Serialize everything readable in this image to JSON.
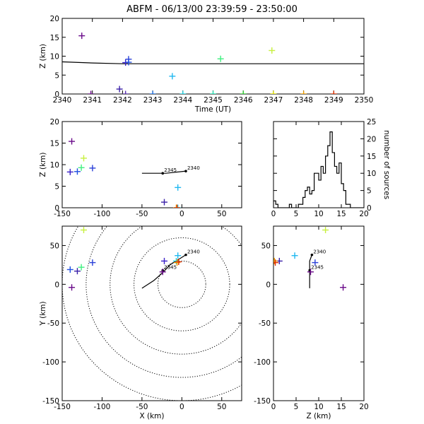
{
  "title": "ABFM - 06/13/00 23:39:59 - 23:50:00",
  "chart_data": [
    {
      "id": "time_height",
      "type": "scatter",
      "xlabel": "Time (UT)",
      "ylabel": "Z (km)",
      "xlim": [
        2340,
        2350
      ],
      "ylim": [
        0,
        20
      ],
      "xticks": [
        "2340",
        "2341",
        "2342",
        "2343",
        "2344",
        "2345",
        "2346",
        "2347",
        "2348",
        "2349",
        "2350"
      ],
      "yticks": [
        "0",
        "5",
        "10",
        "15",
        "20"
      ],
      "line": {
        "x": [
          2340,
          2341,
          2342,
          2350
        ],
        "y": [
          8.5,
          8.2,
          8.0,
          8.0
        ]
      },
      "points": [
        {
          "x": 2340.65,
          "y": 15.4,
          "color": "#6a0a8a"
        },
        {
          "x": 2340.95,
          "y": 0.0,
          "color": "#6a0a8a"
        },
        {
          "x": 2341.9,
          "y": 1.3,
          "color": "#3a20a8"
        },
        {
          "x": 2342.1,
          "y": 8.3,
          "color": "#3a20c8"
        },
        {
          "x": 2342.2,
          "y": 9.2,
          "color": "#2a40d8"
        },
        {
          "x": 2342.1,
          "y": 0.0,
          "color": "#5a30b0"
        },
        {
          "x": 2342.2,
          "y": 8.4,
          "color": "#2050e0"
        },
        {
          "x": 2343.0,
          "y": 0.0,
          "color": "#2070e0"
        },
        {
          "x": 2343.65,
          "y": 4.7,
          "color": "#20b8f0"
        },
        {
          "x": 2344.0,
          "y": 0.0,
          "color": "#20d0e0"
        },
        {
          "x": 2345.0,
          "y": 0.0,
          "color": "#20e0b0"
        },
        {
          "x": 2345.25,
          "y": 9.3,
          "color": "#40f080"
        },
        {
          "x": 2346.0,
          "y": 0.0,
          "color": "#30d030"
        },
        {
          "x": 2346.95,
          "y": 11.5,
          "color": "#c8f040"
        },
        {
          "x": 2347.0,
          "y": 0.0,
          "color": "#e0e000"
        },
        {
          "x": 2348.0,
          "y": 0.0,
          "color": "#f0a000"
        },
        {
          "x": 2349.0,
          "y": 0.0,
          "color": "#e03000"
        }
      ]
    },
    {
      "id": "xz",
      "type": "scatter",
      "xlabel": "",
      "ylabel": "Z (km)",
      "xlim": [
        -150,
        75
      ],
      "ylim": [
        0,
        20
      ],
      "xticks": [
        "-150",
        "-100",
        "-50",
        "0",
        "50"
      ],
      "yticks": [
        "0",
        "5",
        "10",
        "15",
        "20"
      ],
      "track": {
        "x": [
          -50,
          -24,
          -20,
          5
        ],
        "y": [
          8.0,
          8.0,
          8.0,
          8.5
        ]
      },
      "track_labels": [
        {
          "x": 5,
          "y": 8.5,
          "text": "2340"
        },
        {
          "x": -24,
          "y": 8.0,
          "text": "2345"
        }
      ],
      "points": [
        {
          "x": -138,
          "y": 15.4,
          "color": "#6a0a8a"
        },
        {
          "x": -123,
          "y": 11.5,
          "color": "#c8f040"
        },
        {
          "x": -126,
          "y": 9.3,
          "color": "#40f080"
        },
        {
          "x": -112,
          "y": 9.2,
          "color": "#2a40d8"
        },
        {
          "x": -140,
          "y": 8.3,
          "color": "#3a20c8"
        },
        {
          "x": -131,
          "y": 8.4,
          "color": "#2050e0"
        },
        {
          "x": -22,
          "y": 1.3,
          "color": "#3a20a8"
        },
        {
          "x": -5,
          "y": 4.7,
          "color": "#20b8f0"
        },
        {
          "x": -5,
          "y": 0.0,
          "color": "#20d0e0"
        },
        {
          "x": -7,
          "y": 0.0,
          "color": "#f0a000"
        },
        {
          "x": -6,
          "y": 0.0,
          "color": "#e03000"
        }
      ]
    },
    {
      "id": "histogram",
      "type": "bar",
      "xlabel": "",
      "ylabel": "number of sources",
      "xlim": [
        0,
        20
      ],
      "ylim": [
        0,
        25
      ],
      "xticks": [
        "0",
        "5",
        "10",
        "15",
        "20"
      ],
      "yticks": [
        "0",
        "5",
        "10",
        "15",
        "20",
        "25"
      ],
      "bin_width": 0.5,
      "bin_starts": [
        0,
        0.5,
        1,
        1.5,
        2,
        2.5,
        3,
        3.5,
        4,
        4.5,
        5,
        5.5,
        6,
        6.5,
        7,
        7.5,
        8,
        8.5,
        9,
        9.5,
        10,
        10.5,
        11,
        11.5,
        12,
        12.5,
        13,
        13.5,
        14,
        14.5,
        15,
        15.5,
        16,
        16.5,
        17,
        17.5,
        18,
        18.5,
        19,
        19.5
      ],
      "counts": [
        2,
        1,
        0,
        0,
        0,
        0,
        0,
        1,
        0,
        0,
        0,
        1,
        1,
        3,
        5,
        6,
        4,
        5,
        10,
        10,
        8,
        12,
        10,
        15,
        18,
        22,
        16,
        12,
        10,
        13,
        7,
        5,
        1,
        1,
        0,
        0,
        0,
        0,
        0,
        0
      ]
    },
    {
      "id": "plan",
      "type": "scatter",
      "xlabel": "X (km)",
      "ylabel": "Y (km)",
      "xlim": [
        -150,
        75
      ],
      "ylim": [
        -150,
        75
      ],
      "xticks": [
        "-150",
        "-100",
        "-50",
        "0",
        "50"
      ],
      "yticks": [
        "-150",
        "-100",
        "-50",
        "0",
        "50"
      ],
      "range_rings_km": [
        30,
        60,
        90,
        120,
        150
      ],
      "track": {
        "x": [
          -50,
          -35,
          -24,
          -15,
          5
        ],
        "y": [
          -5,
          5,
          15,
          25,
          38
        ]
      },
      "track_labels": [
        {
          "x": 5,
          "y": 38,
          "text": "2340"
        },
        {
          "x": -24,
          "y": 18,
          "text": "2345"
        }
      ],
      "points": [
        {
          "x": -123,
          "y": 70,
          "color": "#c8f040"
        },
        {
          "x": -5,
          "y": 37,
          "color": "#20b8f0"
        },
        {
          "x": -22,
          "y": 30,
          "color": "#3a20c8"
        },
        {
          "x": -112,
          "y": 28,
          "color": "#2a40d8"
        },
        {
          "x": -126,
          "y": 22,
          "color": "#40f080"
        },
        {
          "x": -140,
          "y": 19,
          "color": "#2050e0"
        },
        {
          "x": -131,
          "y": 17,
          "color": "#3a20a8"
        },
        {
          "x": -138,
          "y": -4,
          "color": "#6a0a8a"
        },
        {
          "x": -7,
          "y": 30,
          "color": "#20d0e0"
        },
        {
          "x": -6,
          "y": 28,
          "color": "#f0a000"
        },
        {
          "x": -4,
          "y": 29,
          "color": "#e03000"
        },
        {
          "x": -24,
          "y": 16,
          "color": "#6a0a8a"
        }
      ]
    },
    {
      "id": "zy",
      "type": "scatter",
      "xlabel": "Z (km)",
      "ylabel": "",
      "xlim": [
        0,
        20
      ],
      "ylim": [
        -150,
        75
      ],
      "xticks": [
        "0",
        "5",
        "10",
        "15",
        "20"
      ],
      "yticks": [
        "-150",
        "-100",
        "-50",
        "0",
        "50"
      ],
      "track": {
        "x": [
          8.0,
          8.0,
          8.0,
          8.5
        ],
        "y": [
          -5,
          15,
          30,
          38
        ]
      },
      "track_labels": [
        {
          "x": 8.5,
          "y": 38,
          "text": "2340"
        },
        {
          "x": 8.0,
          "y": 18,
          "text": "2345"
        }
      ],
      "points": [
        {
          "x": 11.5,
          "y": 70,
          "color": "#c8f040"
        },
        {
          "x": 4.7,
          "y": 37,
          "color": "#20b8f0"
        },
        {
          "x": 9.2,
          "y": 28,
          "color": "#2a40d8"
        },
        {
          "x": 1.3,
          "y": 30,
          "color": "#3a20a8"
        },
        {
          "x": 0.2,
          "y": 30,
          "color": "#f0a000"
        },
        {
          "x": 0.4,
          "y": 28,
          "color": "#e03000"
        },
        {
          "x": 8.2,
          "y": 16,
          "color": "#6a0a8a"
        },
        {
          "x": 15.4,
          "y": -4,
          "color": "#6a0a8a"
        }
      ]
    }
  ]
}
